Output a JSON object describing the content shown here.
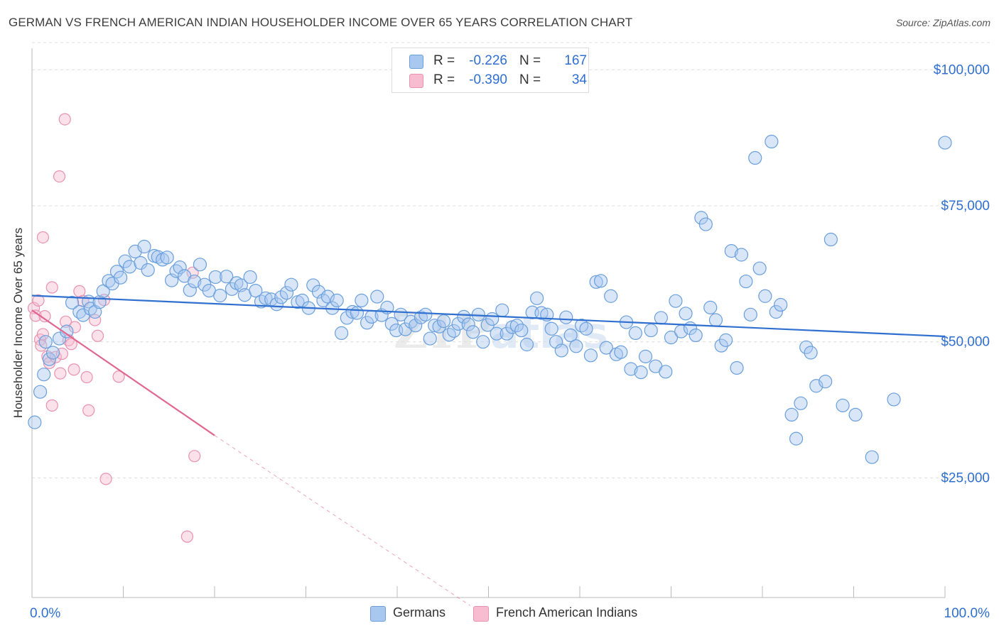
{
  "header": {
    "title": "GERMAN VS FRENCH AMERICAN INDIAN HOUSEHOLDER INCOME OVER 65 YEARS CORRELATION CHART",
    "source": "Source: ZipAtlas.com"
  },
  "legend": {
    "rows": [
      {
        "r_label": "R =",
        "r_value": "-0.226",
        "n_label": "N =",
        "n_value": "167"
      },
      {
        "r_label": "R =",
        "r_value": "-0.390",
        "n_label": "N =",
        "n_value": "34"
      }
    ],
    "bottom": [
      {
        "label": "Germans"
      },
      {
        "label": "French American Indians"
      }
    ]
  },
  "colors": {
    "germans_fill": "#a9c8f0",
    "germans_stroke": "#6a9fdc",
    "germans_line": "#2f6fd0",
    "french_fill": "#f7bcd0",
    "french_stroke": "#e893b0",
    "french_line": "#e06792",
    "axis_value": "#2f6fd0",
    "grid": "#dddddd"
  },
  "chart_data": {
    "type": "scatter",
    "title": "GERMAN VS FRENCH AMERICAN INDIAN HOUSEHOLDER INCOME OVER 65 YEARS CORRELATION CHART",
    "xlabel": "",
    "ylabel": "Householder Income Over 65 years",
    "xlim": [
      0,
      100
    ],
    "ylim": [
      3000,
      105000
    ],
    "x_tick_labels": [
      "0.0%",
      "100.0%"
    ],
    "y_ticks": [
      25000,
      50000,
      75000,
      100000
    ],
    "y_tick_labels": [
      "$25,000",
      "$50,000",
      "$75,000",
      "$100,000"
    ],
    "grid": "horizontal dashed",
    "legend_position": "top-center",
    "watermark": "ZIPatlas",
    "series": [
      {
        "name": "Germans",
        "r": -0.226,
        "n": 167,
        "trend": {
          "x": [
            0,
            100
          ],
          "y": [
            58500,
            51000
          ]
        },
        "points": [
          [
            0.3,
            35200
          ],
          [
            0.9,
            40800
          ],
          [
            1.3,
            44000
          ],
          [
            1.5,
            50000
          ],
          [
            1.9,
            46800
          ],
          [
            2.3,
            48000
          ],
          [
            3.0,
            50600
          ],
          [
            3.8,
            51900
          ],
          [
            4.4,
            57200
          ],
          [
            5.2,
            55500
          ],
          [
            5.6,
            54900
          ],
          [
            6.2,
            57400
          ],
          [
            6.4,
            56100
          ],
          [
            6.9,
            55500
          ],
          [
            7.4,
            57300
          ],
          [
            7.8,
            59300
          ],
          [
            8.4,
            61200
          ],
          [
            8.8,
            60700
          ],
          [
            9.3,
            62900
          ],
          [
            9.7,
            61800
          ],
          [
            10.2,
            64800
          ],
          [
            10.7,
            63800
          ],
          [
            11.3,
            66600
          ],
          [
            11.9,
            64500
          ],
          [
            12.3,
            67500
          ],
          [
            12.7,
            63200
          ],
          [
            13.4,
            65800
          ],
          [
            13.8,
            65600
          ],
          [
            14.3,
            65100
          ],
          [
            14.8,
            65500
          ],
          [
            15.3,
            61300
          ],
          [
            15.8,
            63000
          ],
          [
            16.2,
            63700
          ],
          [
            16.7,
            62100
          ],
          [
            17.3,
            59500
          ],
          [
            17.8,
            61100
          ],
          [
            18.4,
            64200
          ],
          [
            18.9,
            60500
          ],
          [
            19.4,
            59400
          ],
          [
            20.1,
            61900
          ],
          [
            20.6,
            58500
          ],
          [
            21.3,
            62000
          ],
          [
            21.9,
            59700
          ],
          [
            22.4,
            60800
          ],
          [
            22.9,
            60400
          ],
          [
            23.3,
            58600
          ],
          [
            23.9,
            61900
          ],
          [
            24.5,
            59400
          ],
          [
            25.1,
            57400
          ],
          [
            25.6,
            58000
          ],
          [
            26.2,
            57800
          ],
          [
            26.8,
            56900
          ],
          [
            27.3,
            58200
          ],
          [
            27.9,
            59000
          ],
          [
            28.4,
            60500
          ],
          [
            29.1,
            57300
          ],
          [
            29.6,
            57600
          ],
          [
            30.3,
            56200
          ],
          [
            30.8,
            60400
          ],
          [
            31.4,
            59200
          ],
          [
            31.9,
            57600
          ],
          [
            32.4,
            58300
          ],
          [
            32.9,
            56200
          ],
          [
            33.4,
            57600
          ],
          [
            33.9,
            51600
          ],
          [
            34.5,
            54400
          ],
          [
            35.1,
            55500
          ],
          [
            35.6,
            55300
          ],
          [
            36.1,
            57600
          ],
          [
            36.7,
            53500
          ],
          [
            37.2,
            54600
          ],
          [
            37.8,
            58300
          ],
          [
            38.3,
            54900
          ],
          [
            38.9,
            56300
          ],
          [
            39.4,
            53300
          ],
          [
            39.9,
            52100
          ],
          [
            40.4,
            55000
          ],
          [
            40.9,
            52300
          ],
          [
            41.5,
            53700
          ],
          [
            42.0,
            53000
          ],
          [
            42.6,
            54500
          ],
          [
            43.1,
            55000
          ],
          [
            43.6,
            50600
          ],
          [
            44.1,
            53000
          ],
          [
            44.6,
            52800
          ],
          [
            45.1,
            53800
          ],
          [
            45.7,
            51300
          ],
          [
            46.2,
            52000
          ],
          [
            46.7,
            53300
          ],
          [
            47.3,
            54600
          ],
          [
            47.8,
            53200
          ],
          [
            48.3,
            51800
          ],
          [
            48.9,
            55000
          ],
          [
            49.4,
            50000
          ],
          [
            49.9,
            53100
          ],
          [
            50.4,
            54200
          ],
          [
            50.9,
            51500
          ],
          [
            51.5,
            55800
          ],
          [
            52.0,
            51500
          ],
          [
            52.6,
            52700
          ],
          [
            53.1,
            53000
          ],
          [
            53.6,
            52100
          ],
          [
            54.2,
            49500
          ],
          [
            54.8,
            55400
          ],
          [
            55.3,
            58000
          ],
          [
            55.8,
            55300
          ],
          [
            56.4,
            55000
          ],
          [
            56.9,
            52400
          ],
          [
            57.4,
            50000
          ],
          [
            58.0,
            48400
          ],
          [
            58.5,
            54500
          ],
          [
            59.0,
            51200
          ],
          [
            59.6,
            49200
          ],
          [
            60.2,
            53000
          ],
          [
            60.7,
            52400
          ],
          [
            61.2,
            47500
          ],
          [
            61.8,
            61000
          ],
          [
            62.3,
            61200
          ],
          [
            62.9,
            48900
          ],
          [
            63.4,
            58400
          ],
          [
            64.0,
            47700
          ],
          [
            64.5,
            48100
          ],
          [
            65.1,
            53600
          ],
          [
            65.6,
            45000
          ],
          [
            66.1,
            51600
          ],
          [
            66.7,
            44400
          ],
          [
            67.2,
            47300
          ],
          [
            67.8,
            52100
          ],
          [
            68.3,
            45500
          ],
          [
            68.9,
            54400
          ],
          [
            69.4,
            44500
          ],
          [
            70.0,
            50800
          ],
          [
            70.5,
            57500
          ],
          [
            71.1,
            51900
          ],
          [
            71.6,
            55200
          ],
          [
            72.1,
            52500
          ],
          [
            72.7,
            51200
          ],
          [
            73.3,
            72800
          ],
          [
            73.8,
            71600
          ],
          [
            74.3,
            56300
          ],
          [
            74.9,
            54000
          ],
          [
            75.5,
            49300
          ],
          [
            76.0,
            50300
          ],
          [
            76.6,
            66700
          ],
          [
            77.2,
            45200
          ],
          [
            77.7,
            66000
          ],
          [
            78.2,
            61100
          ],
          [
            78.7,
            55000
          ],
          [
            79.2,
            83800
          ],
          [
            79.7,
            63500
          ],
          [
            80.3,
            58400
          ],
          [
            81.0,
            86800
          ],
          [
            81.5,
            55500
          ],
          [
            82.0,
            56800
          ],
          [
            83.2,
            36600
          ],
          [
            83.7,
            32200
          ],
          [
            84.2,
            38700
          ],
          [
            84.8,
            49000
          ],
          [
            85.3,
            48000
          ],
          [
            85.9,
            41900
          ],
          [
            86.9,
            42700
          ],
          [
            87.5,
            68800
          ],
          [
            88.8,
            38300
          ],
          [
            90.2,
            36600
          ],
          [
            92.0,
            28800
          ],
          [
            94.4,
            39400
          ],
          [
            100.0,
            86600
          ]
        ]
      },
      {
        "name": "French American Indians",
        "r": -0.39,
        "n": 34,
        "trend": {
          "x": [
            0,
            20
          ],
          "y": [
            55800,
            32800
          ]
        },
        "trend_extension": {
          "x": [
            20,
            48
          ],
          "y": [
            32800,
            1500
          ]
        },
        "points": [
          [
            0.2,
            56200
          ],
          [
            0.4,
            54800
          ],
          [
            0.7,
            57600
          ],
          [
            0.9,
            50400
          ],
          [
            1.0,
            49300
          ],
          [
            1.2,
            51400
          ],
          [
            1.2,
            69200
          ],
          [
            1.4,
            54700
          ],
          [
            1.7,
            47300
          ],
          [
            1.9,
            46100
          ],
          [
            2.2,
            38300
          ],
          [
            2.2,
            60000
          ],
          [
            2.6,
            47200
          ],
          [
            3.0,
            80400
          ],
          [
            3.1,
            44200
          ],
          [
            3.3,
            47800
          ],
          [
            3.6,
            90900
          ],
          [
            3.7,
            53700
          ],
          [
            4.0,
            50300
          ],
          [
            4.3,
            49600
          ],
          [
            4.6,
            44900
          ],
          [
            4.7,
            52700
          ],
          [
            5.2,
            59300
          ],
          [
            5.6,
            57500
          ],
          [
            6.0,
            43500
          ],
          [
            6.2,
            37400
          ],
          [
            6.9,
            54000
          ],
          [
            7.2,
            51100
          ],
          [
            7.9,
            57700
          ],
          [
            8.1,
            24800
          ],
          [
            9.5,
            43600
          ],
          [
            17.0,
            14200
          ],
          [
            17.6,
            62700
          ],
          [
            17.8,
            29000
          ]
        ]
      }
    ]
  }
}
